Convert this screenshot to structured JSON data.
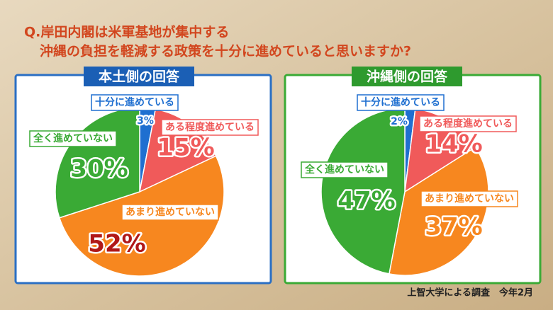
{
  "title": [
    "Q.岸田内閣は米軍基地が集中する",
    "沖縄の負担を軽減する政策を十分に進めていると思いますか?"
  ],
  "source": "上智大学による調査　今年2月",
  "chart_data": [
    {
      "type": "pie",
      "title": "本土側の回答",
      "header_color": "#1b5fb5",
      "border_color": "#2a6fc4",
      "categories": [
        "十分に進めている",
        "ある程度進めている",
        "あまり進めていない",
        "全く進めていない"
      ],
      "values": [
        3,
        15,
        52,
        30
      ],
      "value_labels": [
        "3%",
        "15%",
        "52%",
        "30%"
      ],
      "colors": [
        "#1f6fd0",
        "#f05a5a",
        "#f7871f",
        "#3aaa35"
      ]
    },
    {
      "type": "pie",
      "title": "沖縄側の回答",
      "header_color": "#2e9a2e",
      "border_color": "#3aaa35",
      "categories": [
        "十分に進めている",
        "ある程度進めている",
        "あまり進めていない",
        "全く進めていない"
      ],
      "values": [
        2,
        14,
        37,
        47
      ],
      "value_labels": [
        "2%",
        "14%",
        "37%",
        "47%"
      ],
      "colors": [
        "#1f6fd0",
        "#f05a5a",
        "#f7871f",
        "#3aaa35"
      ]
    }
  ]
}
